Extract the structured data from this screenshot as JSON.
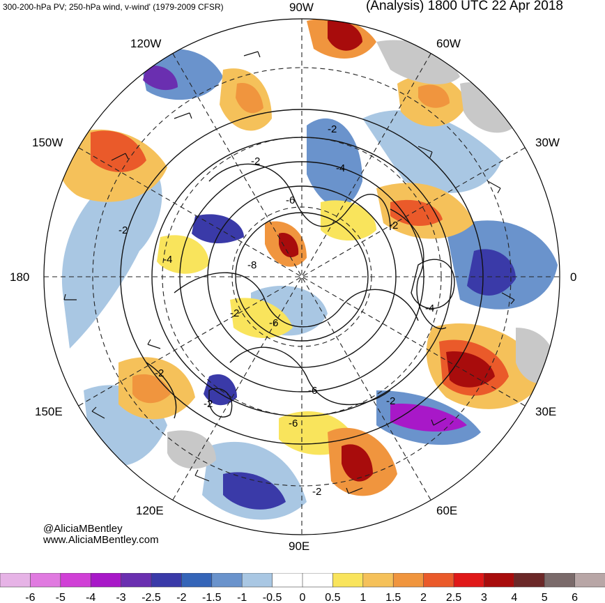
{
  "header": {
    "left": "300-200-hPa PV; 250-hPa wind, v-wind' (1979-2009 CFSR)",
    "right": "(Analysis) 1800 UTC 22 Apr 2018"
  },
  "credits": {
    "handle": "@AliciaMBentley",
    "website": "www.AliciaMBentley.com"
  },
  "longitude_labels": {
    "90W": "90W",
    "60W": "60W",
    "30W": "30W",
    "0": "0",
    "30E": "30E",
    "60E": "60E",
    "90E": "90E",
    "120E": "120E",
    "150E": "150E",
    "180": "180",
    "150W": "150W",
    "120W": "120W"
  },
  "contour_labels": [
    "-2",
    "-4",
    "-6",
    "-8",
    "-6",
    "-2",
    "-2",
    "-6",
    "-4",
    "-2",
    "-2",
    "-2",
    "-6",
    "-2",
    "-2",
    "-2",
    "-4"
  ],
  "colorbar": {
    "ticks": [
      "-6",
      "-5",
      "-4",
      "-3",
      "-2.5",
      "-2",
      "-1.5",
      "-1",
      "-0.5",
      "0",
      "0.5",
      "1",
      "1.5",
      "2",
      "2.5",
      "3",
      "4",
      "5",
      "6"
    ],
    "colors": [
      "#e6b3e6",
      "#e07ae0",
      "#d040d6",
      "#a818c8",
      "#6a2fb0",
      "#3a3aa8",
      "#3565b8",
      "#6a93cc",
      "#a9c7e3",
      "#ffffff",
      "#ffffff",
      "#f9e45c",
      "#f5c15a",
      "#f0953e",
      "#ea5a2a",
      "#e01818",
      "#a80c0c",
      "#6b2828",
      "#7a6a6a",
      "#b8a6a6"
    ]
  }
}
